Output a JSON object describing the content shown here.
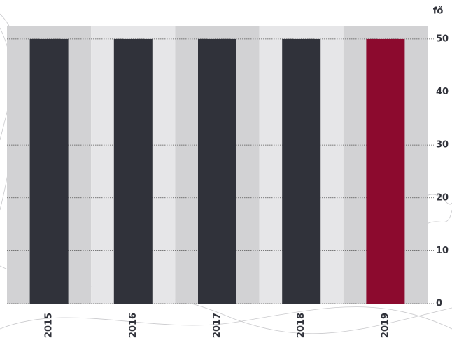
{
  "chart_data": {
    "type": "bar",
    "y_axis_label": "fő",
    "categories": [
      "2015",
      "2016",
      "2017",
      "2018",
      "2019"
    ],
    "values": [
      50,
      50,
      50,
      50,
      50
    ],
    "colors": [
      "#30323a",
      "#30323a",
      "#30323a",
      "#30323a",
      "#8c0a2e"
    ],
    "ylim": [
      0,
      52.5
    ],
    "yticks": [
      0,
      10,
      20,
      30,
      40,
      50
    ],
    "grid": true
  }
}
